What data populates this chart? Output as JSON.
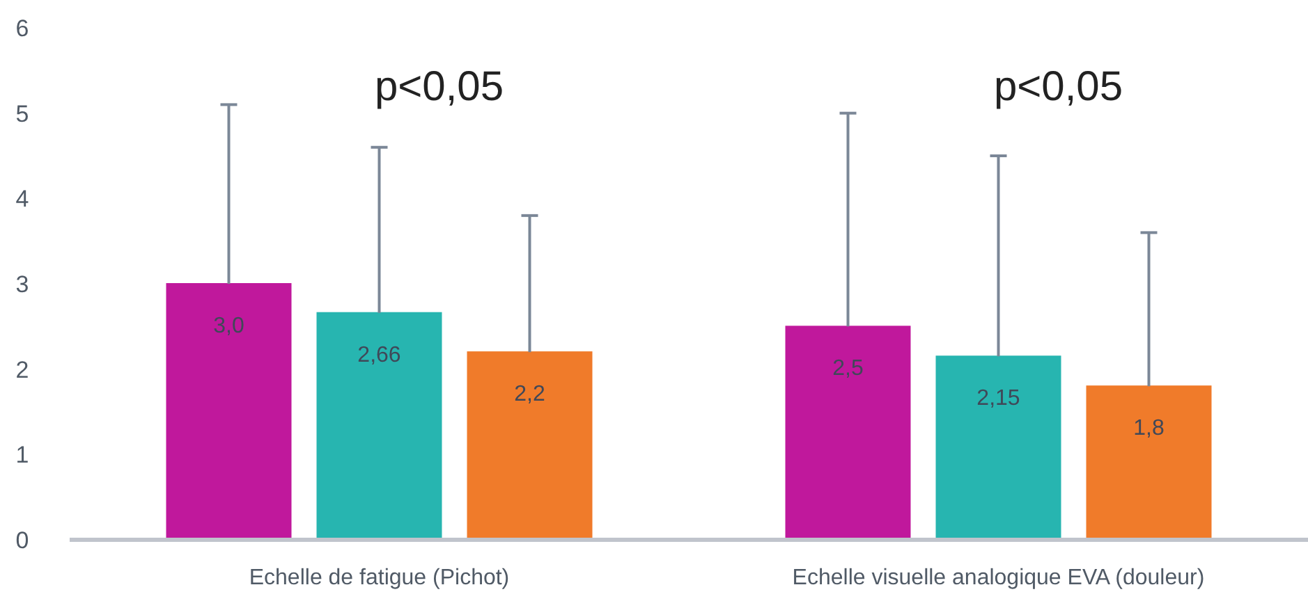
{
  "chart_data": {
    "type": "bar",
    "categories": [
      "Echelle de fatigue (Pichot)",
      "Echelle visuelle analogique EVA (douleur)"
    ],
    "series": [
      {
        "color": "#c0189c",
        "values": [
          3.0,
          2.5
        ],
        "value_labels": [
          "3,0",
          "2,5"
        ],
        "errors": [
          [
            3.0,
            5.1
          ],
          [
            2.5,
            5.0
          ]
        ]
      },
      {
        "color": "#27b5b0",
        "values": [
          2.66,
          2.15
        ],
        "value_labels": [
          "2,66",
          "2,15"
        ],
        "errors": [
          [
            2.66,
            4.6
          ],
          [
            2.15,
            4.5
          ]
        ]
      },
      {
        "color": "#f07b2a",
        "values": [
          2.2,
          1.8
        ],
        "value_labels": [
          "2,2",
          "1,8"
        ],
        "errors": [
          [
            2.2,
            3.8
          ],
          [
            1.8,
            3.6
          ]
        ]
      }
    ],
    "ylim": [
      0,
      6
    ],
    "yticks": [
      0,
      1,
      2,
      3,
      4,
      5,
      6
    ],
    "grid": false,
    "annotations": [
      "p<0,05",
      "p<0,05"
    ]
  }
}
